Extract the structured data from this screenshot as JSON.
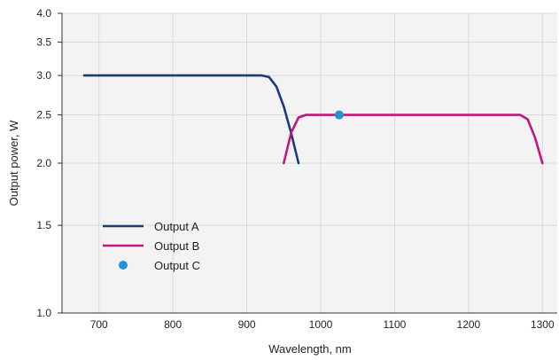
{
  "chart_data": {
    "type": "line",
    "xlabel": "Wavelength, nm",
    "ylabel": "Output power, W",
    "xlim": [
      650,
      1320
    ],
    "ylim": [
      1.0,
      4.0
    ],
    "y_scale": "log",
    "x_ticks": [
      700,
      800,
      900,
      1000,
      1100,
      1200,
      1300
    ],
    "y_ticks": [
      1.0,
      1.5,
      2.0,
      2.5,
      3.0,
      3.5,
      4.0
    ],
    "x_tick_labels": [
      "700",
      "800",
      "900",
      "1000",
      "1100",
      "1200",
      "1300"
    ],
    "y_tick_labels": [
      "1.0",
      "1.5",
      "2.0",
      "2.5",
      "3.0",
      "3.5",
      "4.0"
    ],
    "grid": true,
    "legend_position": "bottom-left",
    "series": [
      {
        "name": "Output A",
        "kind": "line",
        "color": "#1b3a7a",
        "x": [
          680,
          920,
          930,
          940,
          950,
          960,
          970
        ],
        "y": [
          3.0,
          3.0,
          2.98,
          2.85,
          2.6,
          2.3,
          2.0
        ]
      },
      {
        "name": "Output B",
        "kind": "line",
        "color": "#c4157e",
        "x": [
          950,
          960,
          970,
          980,
          1270,
          1280,
          1290,
          1300
        ],
        "y": [
          2.0,
          2.3,
          2.47,
          2.5,
          2.5,
          2.45,
          2.25,
          2.0
        ]
      },
      {
        "name": "Output C",
        "kind": "point",
        "color": "#1f96d1",
        "x": [
          1025
        ],
        "y": [
          2.5
        ]
      }
    ]
  }
}
